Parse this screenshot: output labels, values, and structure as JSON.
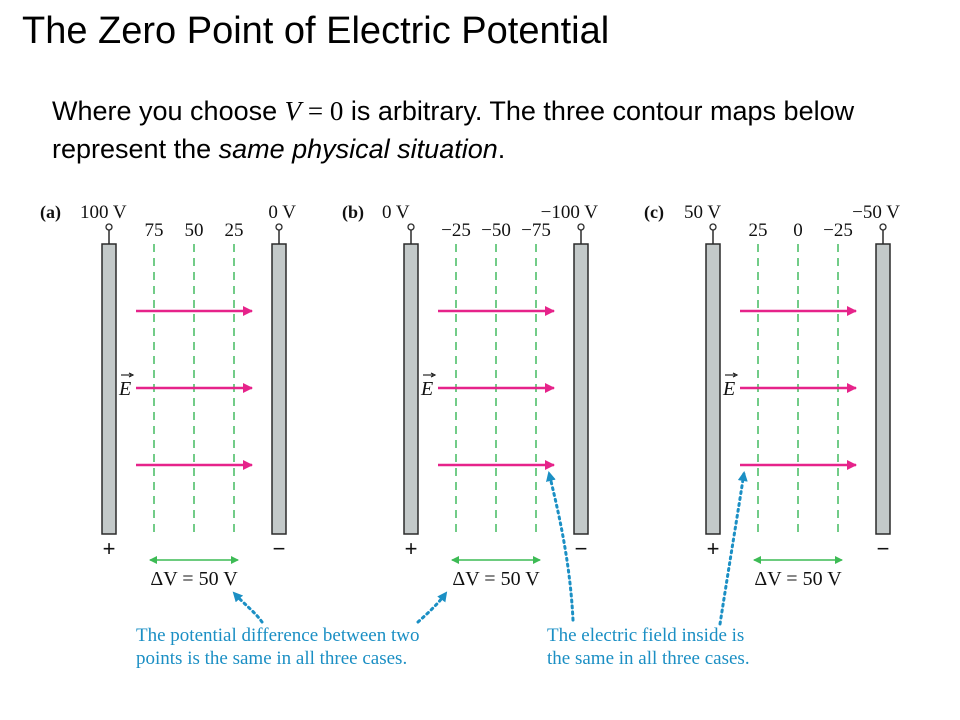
{
  "title": "The Zero Point of Electric Potential",
  "intro": {
    "before": "Where you choose ",
    "math_var": "V",
    "math_rest": " = 0",
    "after": " is arbitrary. The three contour maps below represent the ",
    "emphasis": "same physical situation",
    "end": "."
  },
  "panels": [
    {
      "label": "(a)",
      "left_plate": "100 V",
      "right_plate": "0 V",
      "contours": [
        "75",
        "50",
        "25"
      ],
      "delta_v": "ΔV = 50 V"
    },
    {
      "label": "(b)",
      "left_plate": "0 V",
      "right_plate": "−100 V",
      "contours": [
        "−25",
        "−50",
        "−75"
      ],
      "delta_v": "ΔV = 50 V"
    },
    {
      "label": "(c)",
      "left_plate": "50 V",
      "right_plate": "−50 V",
      "contours": [
        "25",
        "0",
        "−25"
      ],
      "delta_v": "ΔV = 50 V"
    }
  ],
  "field_label": "E",
  "plus_sign": "+",
  "minus_sign": "−",
  "notes": {
    "potential": [
      "The potential difference between two",
      "points is the same in all three cases."
    ],
    "field": [
      "The electric field inside is",
      "the same in all three cases."
    ]
  },
  "colors": {
    "plate_fill": "#c3c9c9",
    "plate_stroke": "#2b2b2b",
    "contour": "#4fc06a",
    "field_arrow": "#e6238a",
    "note_text": "#1b8fc4",
    "note_arrow": "#1b8fc4",
    "delta_arrow": "#3dbb55"
  }
}
